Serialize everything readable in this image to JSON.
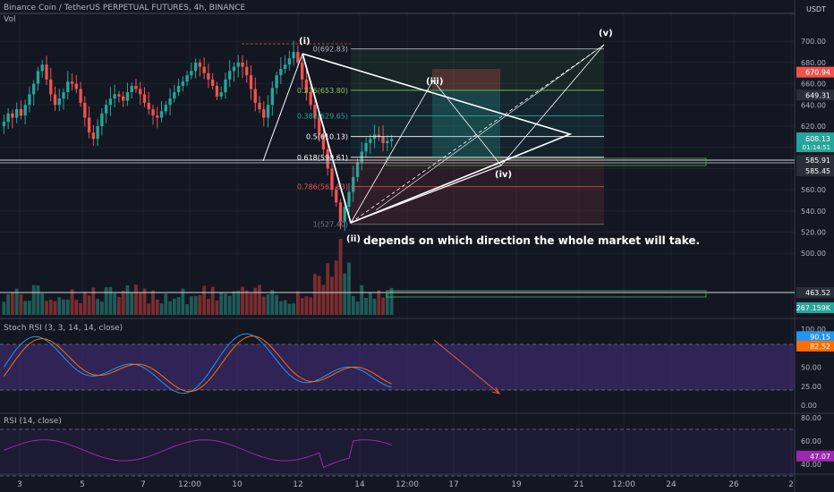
{
  "header": {
    "title": "Binance Coin / TetherUS PERPETUAL FUTURES, 4h, BINANCE",
    "volume_label": "Vol",
    "currency": "USDT"
  },
  "annotation": "depends on which direction the whole market will take.",
  "waves": [
    "(i)",
    "(ii)",
    "(iii)",
    "(iv)",
    "(v)"
  ],
  "fib_levels": [
    {
      "label": "0(692.83)",
      "value": 692.83,
      "color": "#b2b5be"
    },
    {
      "label": "0.236(653.80)",
      "value": 653.8,
      "color": "#8bc34a"
    },
    {
      "label": "0.382(629.65)",
      "value": 629.65,
      "color": "#26a69a"
    },
    {
      "label": "0.5(610.13)",
      "value": 610.13,
      "color": "#ffffff"
    },
    {
      "label": "0.618(590.61)",
      "value": 590.61,
      "color": "#ffffff"
    },
    {
      "label": "0.786(562.83)",
      "value": 562.83,
      "color": "#ef5350"
    },
    {
      "label": "1(527.40)",
      "value": 527.4,
      "color": "#787b86"
    }
  ],
  "price_badges": [
    {
      "label": "USDT",
      "value": null
    },
    {
      "label": "670.94",
      "value": 670.94,
      "color": "#ef5350"
    },
    {
      "label": "649.31",
      "value": 649.31,
      "color": "#434651"
    },
    {
      "label": "608.13",
      "sub": "01:14:51",
      "value": 608.13,
      "color": "#26a69a"
    },
    {
      "label": "585.91",
      "value": 585.91,
      "color": "#434651"
    },
    {
      "label": "585.45",
      "value": 585.45,
      "color": "#434651"
    },
    {
      "label": "463.52",
      "value": 463.52,
      "color": "#434651"
    },
    {
      "label": "267.159K",
      "value": null,
      "color": "#26a69a"
    }
  ],
  "indicators": {
    "stoch_label": "Stoch RSI (3, 3, 14, 14, close)",
    "stoch_k": "90.15",
    "stoch_d": "82.52",
    "rsi_label": "RSI (14, close)",
    "rsi_value": "47.07"
  },
  "chart_data": {
    "type": "candlestick",
    "title": "Binance Coin / TetherUS PERPETUAL FUTURES, 4h, BINANCE",
    "ylim": [
      490,
      725
    ],
    "y_ticks": [
      500,
      520,
      540,
      560,
      580,
      600,
      620,
      640,
      660,
      680,
      700
    ],
    "x_ticks": [
      "3",
      "5",
      "7",
      "12:00",
      "10",
      "12",
      "14",
      "12:00",
      "17",
      "19",
      "21",
      "12:00",
      "24",
      "26",
      "2"
    ],
    "stoch_ticks": [
      "100.00",
      "75.00",
      "50.00",
      "25.00",
      "0.00"
    ],
    "rsi_ticks": [
      "80.00",
      "60.00",
      "40.00"
    ],
    "horizontal_levels": [
      585.91,
      585.45,
      463.52
    ],
    "last_price": 608.13,
    "close_series": [
      624,
      632,
      628,
      636,
      630,
      640,
      650,
      660,
      672,
      678,
      664,
      650,
      640,
      646,
      652,
      662,
      660,
      655,
      642,
      628,
      614,
      608,
      620,
      632,
      640,
      646,
      650,
      648,
      644,
      652,
      658,
      655,
      650,
      642,
      636,
      630,
      628,
      634,
      640,
      646,
      652,
      658,
      662,
      668,
      672,
      680,
      676,
      670,
      664,
      658,
      648,
      652,
      664,
      672,
      676,
      680,
      676,
      668,
      655,
      642,
      636,
      628,
      640,
      656,
      668,
      674,
      678,
      684,
      690,
      680,
      664,
      652,
      640,
      628,
      612,
      598,
      580,
      560,
      548,
      530,
      544,
      558,
      572,
      586,
      596,
      604,
      608,
      612,
      610,
      604,
      606,
      608
    ]
  }
}
